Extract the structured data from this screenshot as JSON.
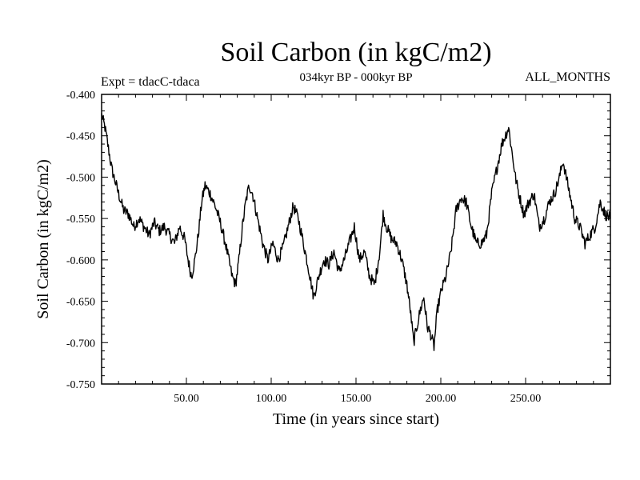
{
  "chart_data": {
    "type": "line",
    "title": "Soil Carbon (in kgC/m2)",
    "subtitle": "034kyr BP - 000kyr BP",
    "experiment": "Expt = tdacC-tdaca",
    "months_label": "ALL_MONTHS",
    "xlabel": "Time (in years since start)",
    "ylabel": "Soil Carbon (in kgC/m2)",
    "xlim": [
      0,
      300
    ],
    "ylim": [
      -0.75,
      -0.4
    ],
    "x_ticks": [
      50,
      100,
      150,
      200,
      250
    ],
    "x_tick_labels": [
      "50.00",
      "100.00",
      "150.00",
      "200.00",
      "250.00"
    ],
    "y_ticks": [
      -0.4,
      -0.45,
      -0.5,
      -0.55,
      -0.6,
      -0.65,
      -0.7,
      -0.75
    ],
    "y_tick_labels": [
      "-0.400",
      "-0.450",
      "-0.500",
      "-0.550",
      "-0.600",
      "-0.650",
      "-0.700",
      "-0.750"
    ],
    "series": [
      {
        "name": "Soil Carbon",
        "color": "#000000",
        "x": [
          0,
          2,
          4,
          6,
          8,
          10,
          13,
          16,
          19,
          22,
          25,
          28,
          31,
          34,
          37,
          40,
          43,
          46,
          49,
          51,
          53,
          55,
          57,
          59,
          61,
          64,
          67,
          70,
          73,
          75,
          77,
          79,
          81,
          83,
          85,
          87,
          89,
          92,
          95,
          98,
          101,
          104,
          107,
          110,
          113,
          116,
          119,
          122,
          125,
          128,
          131,
          134,
          137,
          140,
          143,
          146,
          149,
          152,
          155,
          158,
          161,
          164,
          166,
          168,
          171,
          174,
          177,
          180,
          182,
          184,
          186,
          188,
          190,
          192,
          194,
          196,
          198,
          200,
          203,
          206,
          209,
          212,
          215,
          218,
          221,
          224,
          227,
          230,
          233,
          236,
          238,
          240,
          242,
          244,
          246,
          249,
          252,
          255,
          258,
          261,
          264,
          267,
          270,
          272,
          274,
          276,
          279,
          282,
          285,
          288,
          291,
          294,
          297,
          300
        ],
        "y": [
          -0.425,
          -0.44,
          -0.465,
          -0.49,
          -0.505,
          -0.52,
          -0.54,
          -0.545,
          -0.56,
          -0.55,
          -0.56,
          -0.57,
          -0.555,
          -0.565,
          -0.56,
          -0.57,
          -0.58,
          -0.56,
          -0.575,
          -0.6,
          -0.62,
          -0.6,
          -0.57,
          -0.53,
          -0.51,
          -0.52,
          -0.535,
          -0.555,
          -0.58,
          -0.6,
          -0.62,
          -0.63,
          -0.6,
          -0.56,
          -0.53,
          -0.51,
          -0.52,
          -0.55,
          -0.58,
          -0.6,
          -0.58,
          -0.6,
          -0.585,
          -0.56,
          -0.535,
          -0.55,
          -0.58,
          -0.61,
          -0.645,
          -0.62,
          -0.6,
          -0.605,
          -0.59,
          -0.615,
          -0.6,
          -0.58,
          -0.56,
          -0.6,
          -0.59,
          -0.62,
          -0.63,
          -0.59,
          -0.545,
          -0.56,
          -0.575,
          -0.58,
          -0.6,
          -0.63,
          -0.66,
          -0.7,
          -0.68,
          -0.66,
          -0.645,
          -0.68,
          -0.69,
          -0.705,
          -0.66,
          -0.64,
          -0.62,
          -0.59,
          -0.54,
          -0.525,
          -0.53,
          -0.56,
          -0.58,
          -0.58,
          -0.57,
          -0.52,
          -0.49,
          -0.46,
          -0.45,
          -0.44,
          -0.47,
          -0.5,
          -0.52,
          -0.545,
          -0.53,
          -0.52,
          -0.56,
          -0.55,
          -0.53,
          -0.52,
          -0.5,
          -0.48,
          -0.5,
          -0.52,
          -0.55,
          -0.56,
          -0.58,
          -0.57,
          -0.56,
          -0.53,
          -0.545,
          -0.55
        ]
      }
    ]
  }
}
